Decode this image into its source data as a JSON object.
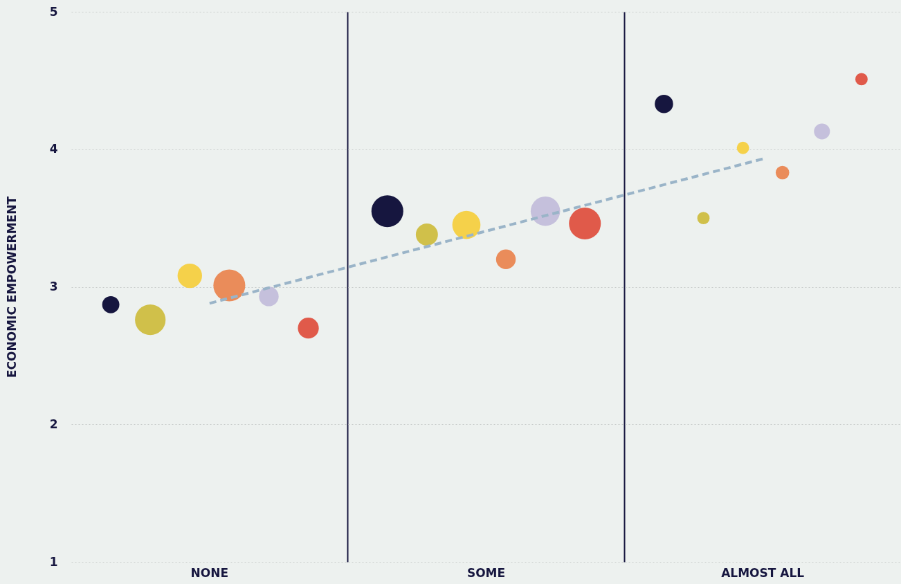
{
  "chart_data": {
    "type": "bubble",
    "ylabel": "ECONOMIC EMPOWERMENT",
    "categories": [
      "NONE",
      "SOME",
      "ALMOST ALL"
    ],
    "ylim": [
      1,
      5
    ],
    "yticks": [
      1,
      2,
      3,
      4,
      5
    ],
    "grid": true,
    "series": [
      {
        "color": "#16163f",
        "x": [
          "NONE",
          "SOME",
          "ALMOST ALL"
        ],
        "values": [
          2.87,
          3.55,
          4.33
        ],
        "sizes": [
          0.29,
          1.0,
          0.33
        ]
      },
      {
        "color": "#d0c04a",
        "x": [
          "NONE",
          "SOME",
          "ALMOST ALL"
        ],
        "values": [
          2.76,
          3.38,
          3.5
        ],
        "sizes": [
          0.92,
          0.48,
          0.15
        ]
      },
      {
        "color": "#f5d14a",
        "x": [
          "NONE",
          "SOME",
          "ALMOST ALL"
        ],
        "values": [
          3.08,
          3.45,
          4.01
        ],
        "sizes": [
          0.59,
          0.78,
          0.15
        ]
      },
      {
        "color": "#ea8c5a",
        "x": [
          "NONE",
          "SOME",
          "ALMOST ALL"
        ],
        "values": [
          3.01,
          3.2,
          3.83
        ],
        "sizes": [
          1.0,
          0.38,
          0.18
        ]
      },
      {
        "color": "#c5c0dc",
        "x": [
          "NONE",
          "SOME",
          "ALMOST ALL"
        ],
        "values": [
          2.93,
          3.55,
          4.13
        ],
        "sizes": [
          0.38,
          0.85,
          0.25
        ]
      },
      {
        "color": "#e05a4a",
        "x": [
          "NONE",
          "SOME",
          "ALMOST ALL"
        ],
        "values": [
          2.7,
          3.46,
          4.51
        ],
        "sizes": [
          0.43,
          1.0,
          0.15
        ]
      },
      {
        "type": "line",
        "line_style": "dashed",
        "color": "#9ab4c8",
        "x": [
          "NONE",
          "ALMOST ALL"
        ],
        "values": [
          2.88,
          3.93
        ]
      }
    ]
  }
}
